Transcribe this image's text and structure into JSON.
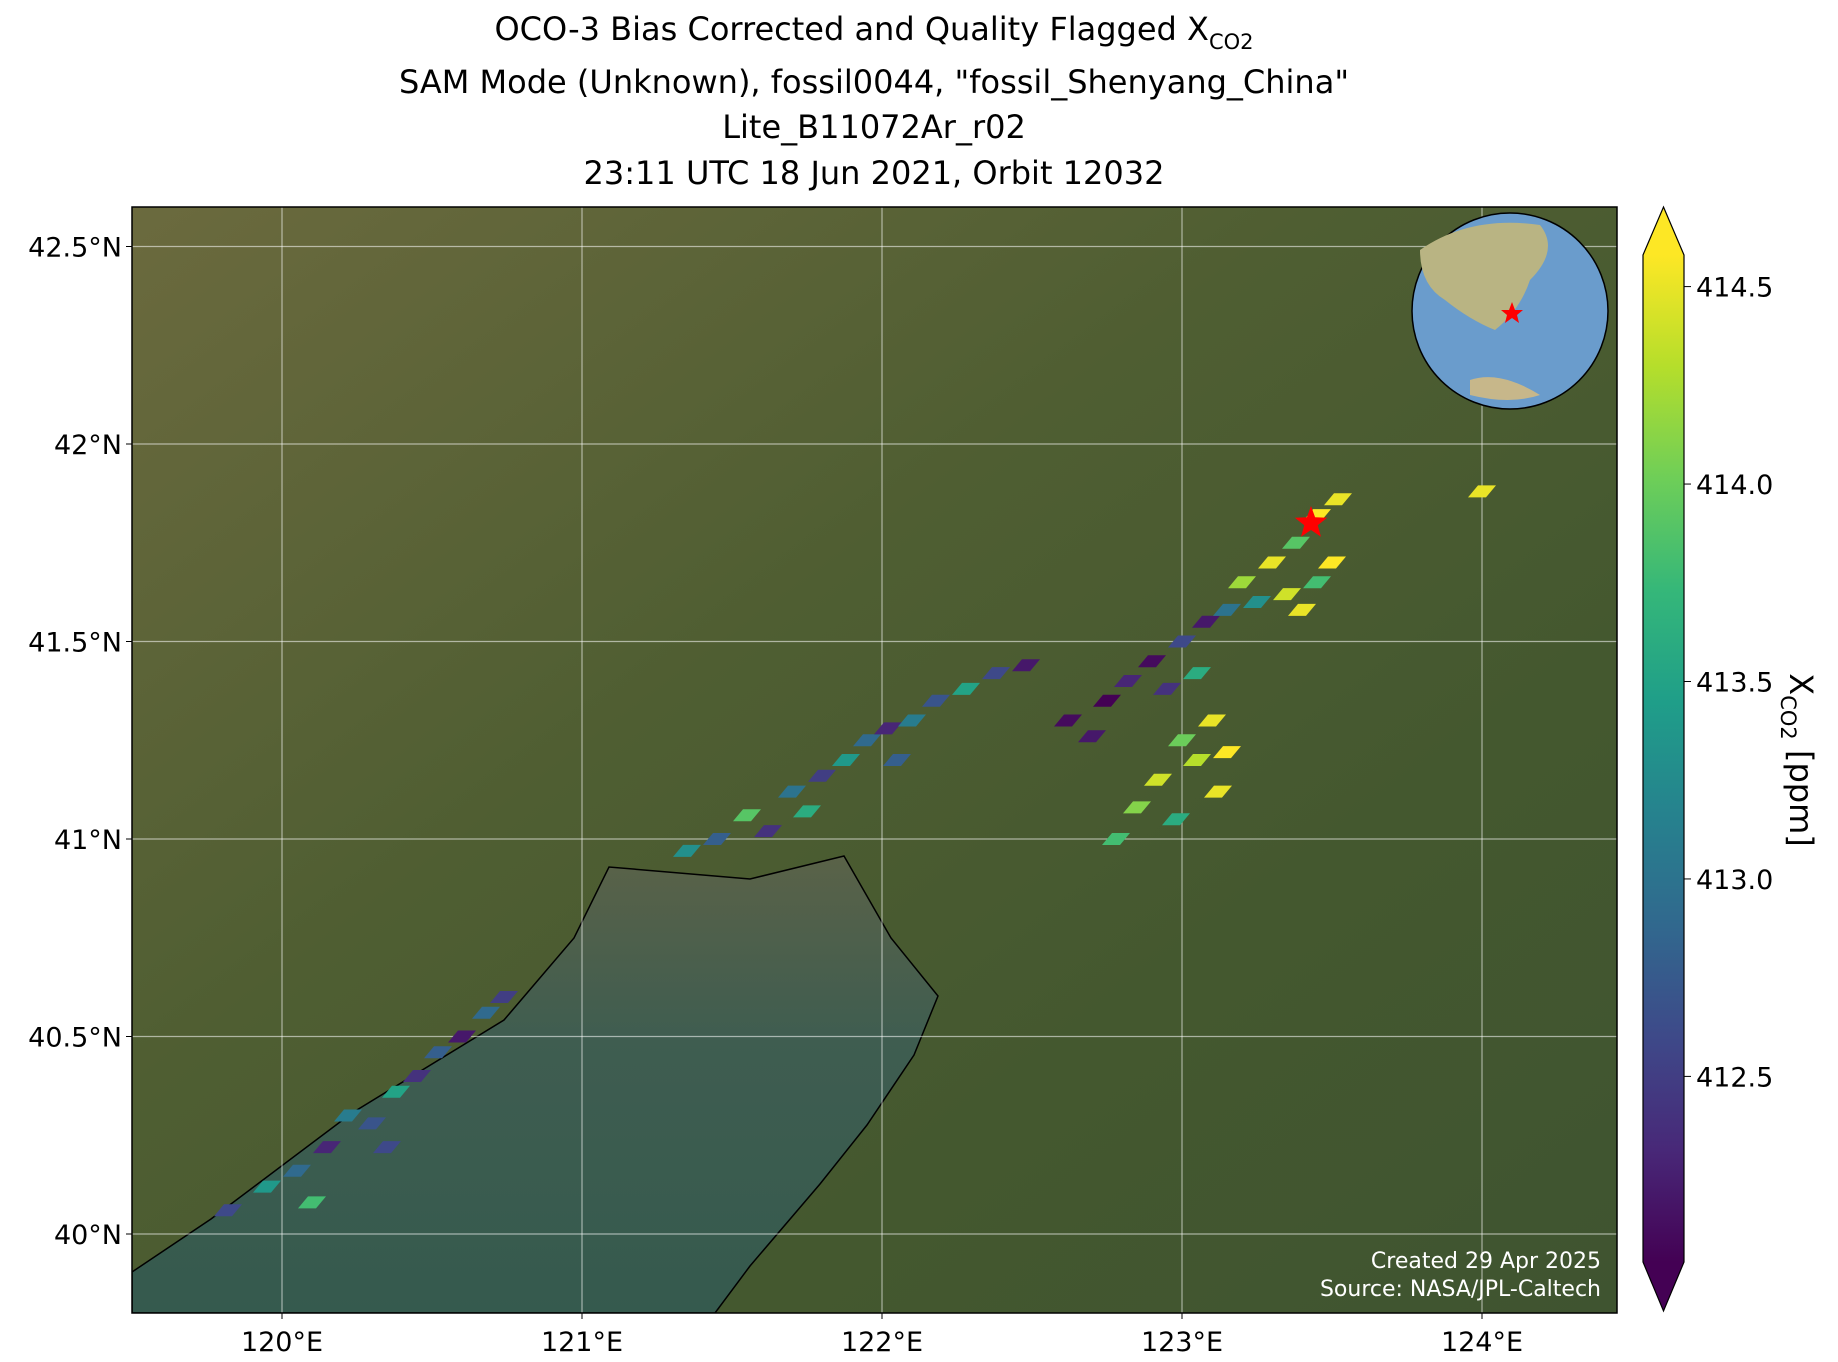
{
  "chart_data": {
    "type": "scatter",
    "title": {
      "main": "OCO-3 Bias Corrected and Quality Flagged X",
      "sub": "CO2"
    },
    "subtitle": [
      "SAM Mode (Unknown), fossil0044, \"fossil_Shenyang_China\"",
      "Lite_B11072Ar_r02",
      "23:11 UTC 18 Jun 2021, Orbit 12032"
    ],
    "xlim": [
      119.5,
      124.45
    ],
    "ylim": [
      39.8,
      42.6
    ],
    "xticks": [
      {
        "value": 120,
        "label": "120°E"
      },
      {
        "value": 121,
        "label": "121°E"
      },
      {
        "value": 122,
        "label": "122°E"
      },
      {
        "value": 123,
        "label": "123°E"
      },
      {
        "value": 124,
        "label": "124°E"
      }
    ],
    "yticks": [
      {
        "value": 40,
        "label": "40°N"
      },
      {
        "value": 40.5,
        "label": "40.5°N"
      },
      {
        "value": 41,
        "label": "41°N"
      },
      {
        "value": 41.5,
        "label": "41.5°N"
      },
      {
        "value": 42,
        "label": "42°N"
      },
      {
        "value": 42.5,
        "label": "42.5°N"
      }
    ],
    "grid": true,
    "cmap": "viridis",
    "clim": [
      412.03,
      414.58
    ],
    "cticks": [
      412.5,
      {
        "value": 413,
        "label": "413.0"
      },
      413.5,
      {
        "value": 414,
        "label": "414.0"
      },
      414.5
    ],
    "colorbar_label": {
      "main": "X",
      "sub": "CO2",
      "unit": " [ppm]"
    },
    "target": {
      "lon": 123.43,
      "lat": 41.8,
      "color": "#ff0000"
    },
    "x": [
      119.82,
      119.95,
      120.05,
      120.15,
      120.22,
      120.3,
      120.38,
      120.45,
      120.52,
      120.6,
      120.68,
      120.74,
      120.1,
      120.35,
      121.35,
      121.45,
      121.55,
      121.62,
      121.7,
      121.8,
      121.88,
      121.95,
      122.02,
      122.1,
      122.18,
      122.28,
      122.38,
      122.48,
      121.75,
      122.05,
      122.62,
      122.7,
      122.75,
      122.82,
      122.9,
      122.95,
      123.0,
      123.08,
      123.15,
      123.05,
      123.1,
      123.15,
      123.05,
      123.12,
      123.2,
      123.3,
      123.38,
      123.45,
      123.52,
      123.35,
      123.45,
      123.5,
      123.25,
      123.4,
      122.78,
      122.85,
      122.92,
      122.98,
      123.0,
      124.0
    ],
    "y": [
      40.06,
      40.12,
      40.16,
      40.22,
      40.3,
      40.28,
      40.36,
      40.4,
      40.46,
      40.5,
      40.56,
      40.6,
      40.08,
      40.22,
      40.97,
      41.0,
      41.06,
      41.02,
      41.12,
      41.16,
      41.2,
      41.25,
      41.28,
      41.3,
      41.35,
      41.38,
      41.42,
      41.44,
      41.07,
      41.2,
      41.3,
      41.26,
      41.35,
      41.4,
      41.45,
      41.38,
      41.5,
      41.55,
      41.58,
      41.42,
      41.3,
      41.22,
      41.2,
      41.12,
      41.65,
      41.7,
      41.75,
      41.82,
      41.86,
      41.62,
      41.65,
      41.7,
      41.6,
      41.58,
      41.0,
      41.08,
      41.15,
      41.05,
      41.25,
      41.88
    ],
    "values": [
      412.6,
      413.4,
      412.9,
      412.3,
      413.1,
      412.7,
      413.5,
      412.4,
      412.8,
      412.2,
      412.9,
      412.5,
      413.8,
      412.6,
      413.3,
      412.8,
      413.9,
      412.4,
      413.0,
      412.5,
      413.4,
      412.9,
      412.3,
      413.1,
      412.7,
      413.5,
      412.6,
      412.2,
      413.6,
      412.8,
      412.1,
      412.2,
      412.0,
      412.3,
      412.1,
      412.4,
      412.6,
      412.2,
      413.0,
      413.6,
      414.5,
      414.6,
      414.3,
      414.5,
      414.2,
      414.5,
      413.9,
      414.6,
      414.5,
      414.4,
      413.8,
      414.6,
      413.3,
      414.5,
      413.8,
      414.1,
      414.4,
      413.6,
      414.0,
      414.5
    ],
    "footer": [
      "Created 29 Apr 2025",
      "Source: NASA/JPL-Caltech"
    ]
  }
}
